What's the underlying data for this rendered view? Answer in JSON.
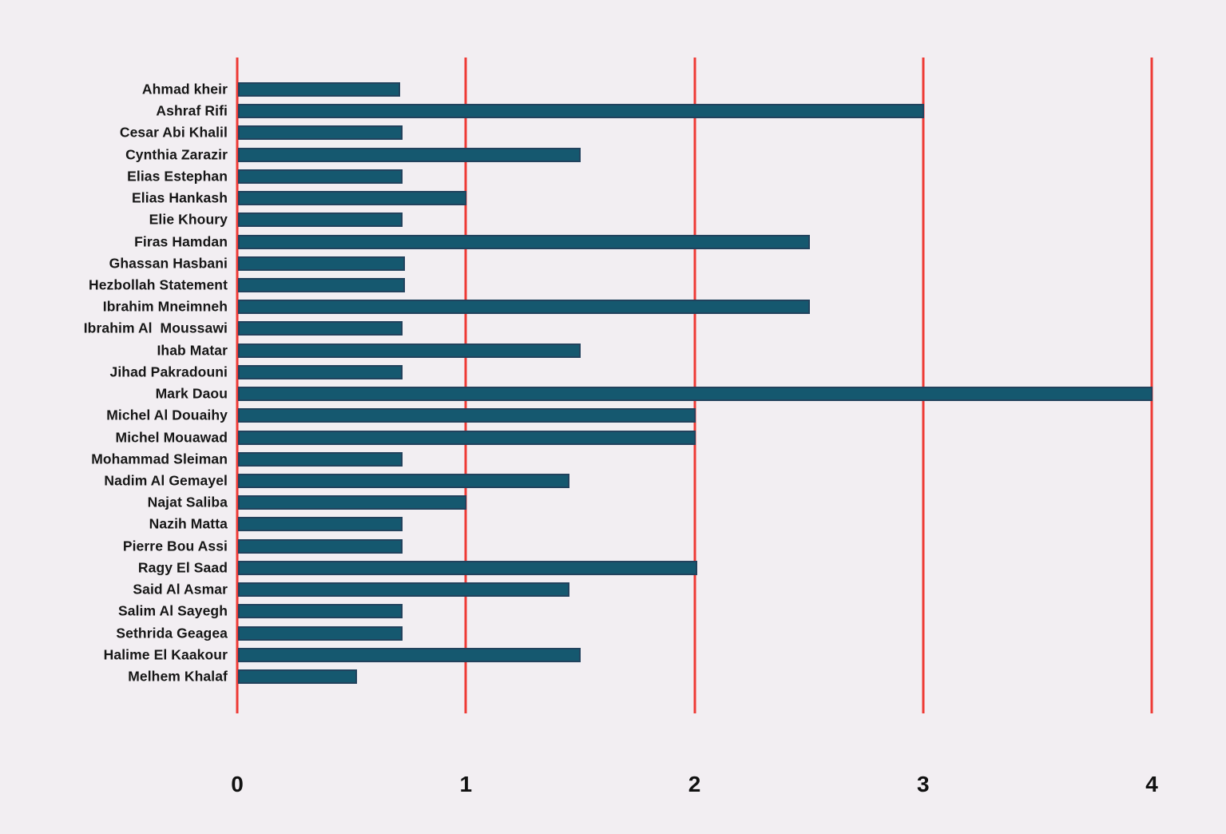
{
  "chart_data": {
    "type": "bar",
    "orientation": "horizontal",
    "title": "",
    "xlabel": "",
    "ylabel": "",
    "xlim": [
      0,
      4
    ],
    "x_ticks": [
      "0",
      "1",
      "2",
      "3",
      "4"
    ],
    "grid": "vertical gridlines at every x tick, full height, drawn behind bars",
    "legend_position": "none",
    "categories": [
      "Ahmad kheir",
      "Ashraf Rifi",
      "Cesar Abi Khalil",
      "Cynthia Zarazir",
      "Elias Estephan",
      "Elias Hankash",
      "Elie Khoury",
      "Firas Hamdan",
      "Ghassan Hasbani",
      "Hezbollah Statement",
      "Ibrahim Mneimneh",
      "Ibrahim Al  Moussawi",
      "Ihab Matar",
      "Jihad Pakradouni",
      "Mark Daou",
      "Michel Al Douaihy",
      "Michel Mouawad",
      "Mohammad Sleiman",
      "Nadim Al Gemayel",
      "Najat Saliba",
      "Nazih Matta",
      "Pierre Bou Assi",
      "Ragy El Saad",
      "Said Al Asmar",
      "Salim Al Sayegh",
      "Sethrida Geagea",
      "Halime El Kaakour",
      "Melhem Khalaf"
    ],
    "values": [
      0.71,
      3.0,
      0.72,
      1.5,
      0.72,
      1.0,
      0.72,
      2.5,
      0.73,
      0.73,
      2.5,
      0.72,
      1.5,
      0.72,
      4.0,
      2.0,
      2.0,
      0.72,
      1.45,
      1.0,
      0.72,
      0.72,
      2.01,
      1.45,
      0.72,
      0.72,
      1.5,
      0.52
    ]
  },
  "colors": {
    "background": "#f2eef2",
    "bar_fill": "#15586f",
    "bar_border": "#21425d",
    "gridline_red": "#ee3a35",
    "label_text": "#161616",
    "tick_text": "#111111"
  }
}
